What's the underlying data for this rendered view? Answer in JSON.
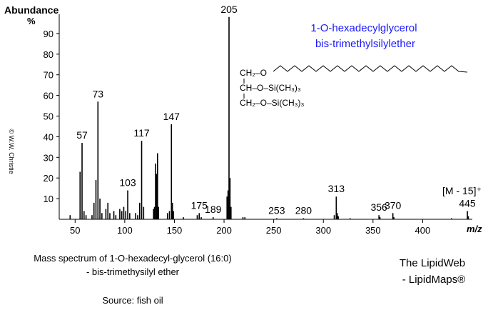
{
  "chart_data": {
    "type": "bar",
    "y_label": "Abundance",
    "y_unit": "%",
    "x_label": "m/z",
    "annotation": "[M - 15]⁺",
    "compound_name": [
      "1-O-hexadecylglycerol",
      "bis-trimethylsilylether"
    ],
    "structure": [
      "CH₂–O",
      "CH–O–Si(CH₃)₃",
      "CH₂–O–Si(CH₃)₃"
    ],
    "caption": [
      "Mass spectrum of 1-O-hexadecyl-glycerol (16:0)",
      "- bis-trimethysilyl ether"
    ],
    "source": "Source: fish oil",
    "credit": [
      "The LipidWeb",
      "- LipidMaps®"
    ],
    "copyright": "© W.W. Christie",
    "color": "#000000",
    "x": [
      45,
      55,
      57,
      59,
      61,
      67,
      69,
      71,
      73,
      75,
      77,
      81,
      83,
      85,
      89,
      91,
      95,
      97,
      99,
      101,
      103,
      105,
      111,
      113,
      115,
      117,
      119,
      129,
      130,
      131,
      132,
      133,
      134,
      143,
      145,
      147,
      148,
      149,
      159,
      173,
      175,
      177,
      189,
      203,
      204,
      205,
      206,
      207,
      219,
      221,
      253,
      280,
      311,
      313,
      314,
      315,
      327,
      356,
      357,
      370,
      371,
      429,
      445,
      446
    ],
    "values": [
      2,
      23,
      37,
      4,
      2,
      2,
      8,
      19,
      57,
      10,
      3,
      5,
      8,
      3,
      4,
      2,
      5,
      4,
      6,
      4,
      14,
      3,
      3,
      2,
      8,
      38,
      6,
      5,
      6,
      27,
      22,
      32,
      6,
      3,
      4,
      46,
      8,
      4,
      1,
      2,
      3,
      1,
      1,
      11,
      14,
      98,
      20,
      6,
      1,
      1,
      0.5,
      0.5,
      2,
      11,
      3,
      1.5,
      0.5,
      2,
      1,
      3,
      1,
      0.5,
      4,
      1.5
    ],
    "peak_labels": [
      57,
      73,
      103,
      117,
      147,
      175,
      189,
      205,
      253,
      280,
      313,
      356,
      370,
      445
    ],
    "xlim": [
      34,
      450
    ],
    "ylim": [
      0,
      100
    ],
    "xticks": [
      50,
      100,
      150,
      200,
      250,
      300,
      350,
      400
    ],
    "yticks": [
      10,
      20,
      30,
      40,
      50,
      60,
      70,
      80,
      90
    ]
  }
}
